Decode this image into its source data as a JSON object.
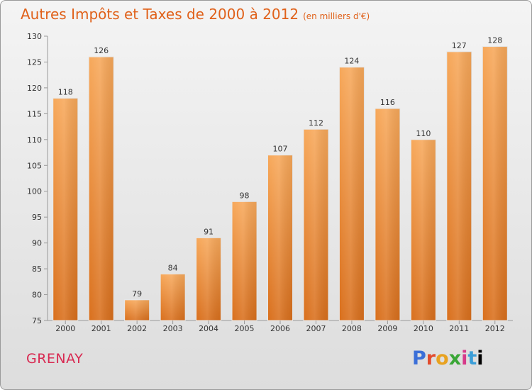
{
  "header": {
    "title": "Autres Impôts et Taxes de 2000 à 2012",
    "unit": "(en milliers d'€)"
  },
  "footer": {
    "city": "GRENAY",
    "brand": "Proxiti"
  },
  "colors": {
    "bar_light": "#f7a85a",
    "bar_dark": "#d96f1c",
    "title": "#e0611a",
    "city": "#d82a52"
  },
  "chart_data": {
    "type": "bar",
    "title": "Autres Impôts et Taxes de 2000 à 2012",
    "subtitle": "(en milliers d'€)",
    "categories": [
      "2000",
      "2001",
      "2002",
      "2003",
      "2004",
      "2005",
      "2006",
      "2007",
      "2008",
      "2009",
      "2010",
      "2011",
      "2012"
    ],
    "values": [
      118,
      126,
      79,
      84,
      91,
      98,
      107,
      112,
      124,
      116,
      110,
      127,
      128
    ],
    "ylim": [
      75,
      130
    ],
    "yticks": [
      75,
      80,
      85,
      90,
      95,
      100,
      105,
      110,
      115,
      120,
      125,
      130
    ],
    "grid": false,
    "legend": "none"
  }
}
